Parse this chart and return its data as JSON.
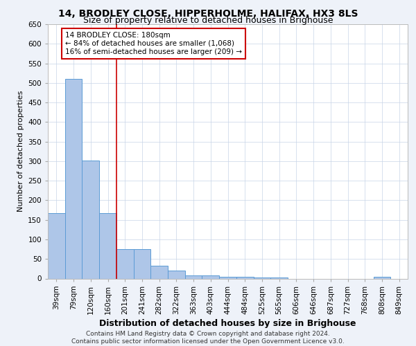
{
  "title": "14, BRODLEY CLOSE, HIPPERHOLME, HALIFAX, HX3 8LS",
  "subtitle": "Size of property relative to detached houses in Brighouse",
  "xlabel": "Distribution of detached houses by size in Brighouse",
  "ylabel": "Number of detached properties",
  "categories": [
    "39sqm",
    "79sqm",
    "120sqm",
    "160sqm",
    "201sqm",
    "241sqm",
    "282sqm",
    "322sqm",
    "363sqm",
    "403sqm",
    "444sqm",
    "484sqm",
    "525sqm",
    "565sqm",
    "606sqm",
    "646sqm",
    "687sqm",
    "727sqm",
    "768sqm",
    "808sqm",
    "849sqm"
  ],
  "values": [
    168,
    510,
    302,
    168,
    75,
    75,
    32,
    20,
    8,
    8,
    5,
    5,
    2,
    2,
    0,
    0,
    0,
    0,
    0,
    5,
    0
  ],
  "bar_color": "#aec6e8",
  "bar_edge_color": "#5b9bd5",
  "ref_line_color": "#cc0000",
  "annotation_text": "14 BRODLEY CLOSE: 180sqm\n← 84% of detached houses are smaller (1,068)\n16% of semi-detached houses are larger (209) →",
  "annotation_box_color": "#cc0000",
  "ylim": [
    0,
    650
  ],
  "yticks": [
    0,
    50,
    100,
    150,
    200,
    250,
    300,
    350,
    400,
    450,
    500,
    550,
    600,
    650
  ],
  "footer": "Contains HM Land Registry data © Crown copyright and database right 2024.\nContains public sector information licensed under the Open Government Licence v3.0.",
  "title_fontsize": 10,
  "subtitle_fontsize": 9,
  "ylabel_fontsize": 8,
  "xlabel_fontsize": 9,
  "tick_fontsize": 7.5,
  "annotation_fontsize": 7.5,
  "footer_fontsize": 6.5,
  "bg_color": "#eef2f9",
  "plot_bg_color": "#ffffff"
}
